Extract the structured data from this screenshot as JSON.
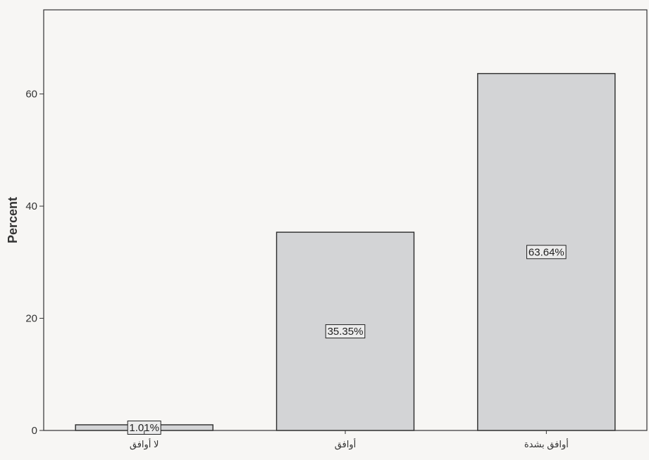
{
  "chart_data": {
    "type": "bar",
    "title": "",
    "xlabel": "",
    "ylabel": "Percent",
    "ylim": [
      0,
      75
    ],
    "yticks": [
      0,
      20,
      40,
      60
    ],
    "categories": [
      "لا أوافق",
      "أوافق",
      "أوافق بشدة"
    ],
    "values": [
      1.01,
      35.35,
      63.64
    ],
    "data_labels": [
      "1.01%",
      "35.35%",
      "63.64%"
    ],
    "grid": false,
    "legend": "none",
    "bar_color": "#d3d4d6",
    "bar_edge_color": "#2b2b2b",
    "background_color": "#f7f6f4"
  }
}
